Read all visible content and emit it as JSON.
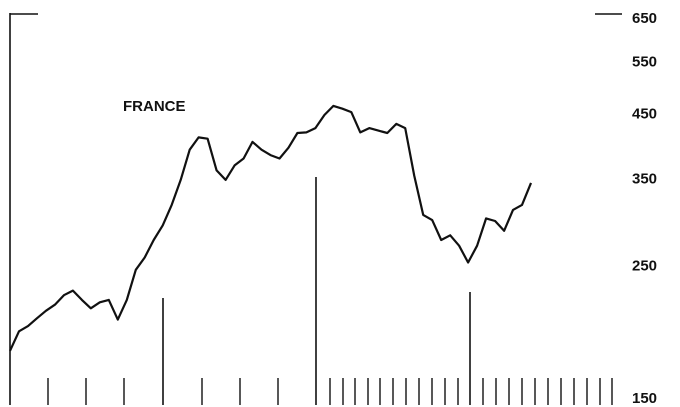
{
  "chart_data": {
    "type": "line",
    "title": "FRANCE",
    "series": [
      {
        "name": null,
        "color": "#111111",
        "values": [
          180,
          194,
          198,
          204,
          210,
          215,
          223,
          227,
          219,
          212,
          217,
          219,
          203,
          219,
          246,
          258,
          276,
          292,
          316,
          348,
          391,
          410,
          408,
          361,
          348,
          368,
          378,
          403,
          391,
          383,
          378,
          394,
          417,
          418,
          425,
          447,
          463,
          458,
          452,
          418,
          425,
          421,
          417,
          432,
          425,
          354,
          304,
          298,
          276,
          281,
          270,
          253,
          270,
          300,
          297,
          286,
          310,
          316,
          344
        ]
      }
    ],
    "ylim": [
      150,
      650
    ],
    "yticks": [
      150,
      250,
      350,
      450,
      550,
      650
    ],
    "log_scale": true,
    "grid": false
  }
}
